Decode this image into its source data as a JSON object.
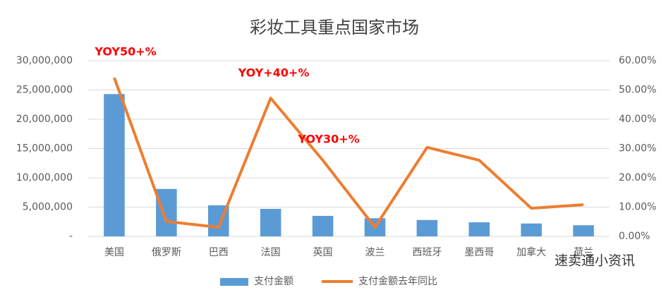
{
  "chart_data": {
    "type": "bar-line",
    "title": "彩妆工具重点国家市场",
    "categories": [
      "美国",
      "俄罗斯",
      "巴西",
      "法国",
      "英国",
      "波兰",
      "西班牙",
      "墨西哥",
      "加拿大",
      "荷兰"
    ],
    "series": [
      {
        "name": "支付金额",
        "color": "#5b9bd5",
        "type": "bar",
        "values": [
          24300000,
          8100000,
          5300000,
          4700000,
          3500000,
          3100000,
          2800000,
          2400000,
          2200000,
          1900000
        ]
      },
      {
        "name": "支付金额去年同比",
        "color": "#ed7d31",
        "type": "line",
        "axis": "y2",
        "values": [
          54.2,
          5.1,
          3.1,
          47.2,
          26,
          3.1,
          30.4,
          26,
          9.6,
          10.8
        ]
      }
    ],
    "ylim": [
      0,
      30000000
    ],
    "yticks": [
      {
        "value": 0,
        "label": "-"
      },
      {
        "value": 5000000,
        "label": "5,000,000"
      },
      {
        "value": 10000000,
        "label": "10,000,000"
      },
      {
        "value": 15000000,
        "label": "15,000,000"
      },
      {
        "value": 20000000,
        "label": "20,000,000"
      },
      {
        "value": 25000000,
        "label": "25,000,000"
      },
      {
        "value": 30000000,
        "label": "30,000,000"
      }
    ],
    "y2lim": [
      0,
      60
    ],
    "y2ticks": [
      {
        "value": 0,
        "label": "0.00%"
      },
      {
        "value": 10,
        "label": "10.00%"
      },
      {
        "value": 20,
        "label": "20.00%"
      },
      {
        "value": 30,
        "label": "30.00%"
      },
      {
        "value": 40,
        "label": "40.00%"
      },
      {
        "value": 50,
        "label": "50.00%"
      },
      {
        "value": 60,
        "label": "60.00%"
      }
    ],
    "grid": true,
    "legend": "bottom",
    "annotations": [
      "YOY50+%",
      "YOY+40+%",
      "YOY30+%"
    ]
  },
  "watermark": "速卖通小资讯"
}
